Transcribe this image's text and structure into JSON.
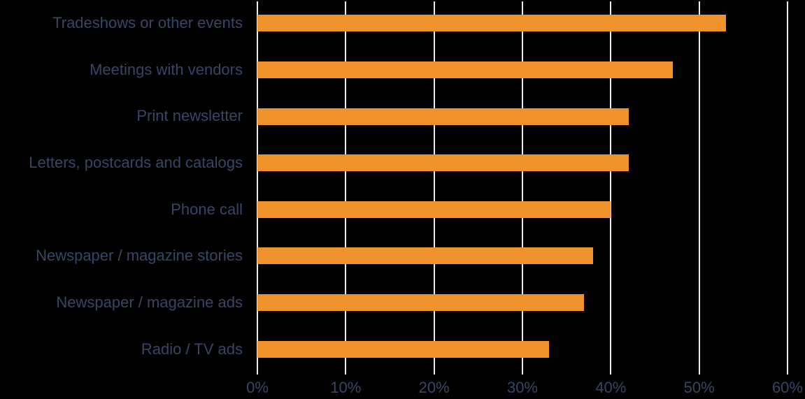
{
  "chart_data": {
    "type": "bar",
    "orientation": "horizontal",
    "categories": [
      "Tradeshows or other events",
      "Meetings with vendors",
      "Print newsletter",
      "Letters, postcards and catalogs",
      "Phone call",
      "Newspaper / magazine stories",
      "Newspaper / magazine ads",
      "Radio / TV ads"
    ],
    "values": [
      53,
      47,
      42,
      42,
      40,
      38,
      37,
      33
    ],
    "value_unit": "%",
    "xlim": [
      0,
      60
    ],
    "x_ticks": [
      {
        "value": 0,
        "label": "0%"
      },
      {
        "value": 10,
        "label": "10%"
      },
      {
        "value": 20,
        "label": "20%"
      },
      {
        "value": 30,
        "label": "30%"
      },
      {
        "value": 40,
        "label": "40%"
      },
      {
        "value": 50,
        "label": "50%"
      },
      {
        "value": 60,
        "label": "60%"
      }
    ],
    "grid": true,
    "legend": false,
    "colors": {
      "bar": "#F0922B",
      "label": "#3B4467",
      "gridline": "#EBEBF3",
      "background": "#000000"
    }
  }
}
